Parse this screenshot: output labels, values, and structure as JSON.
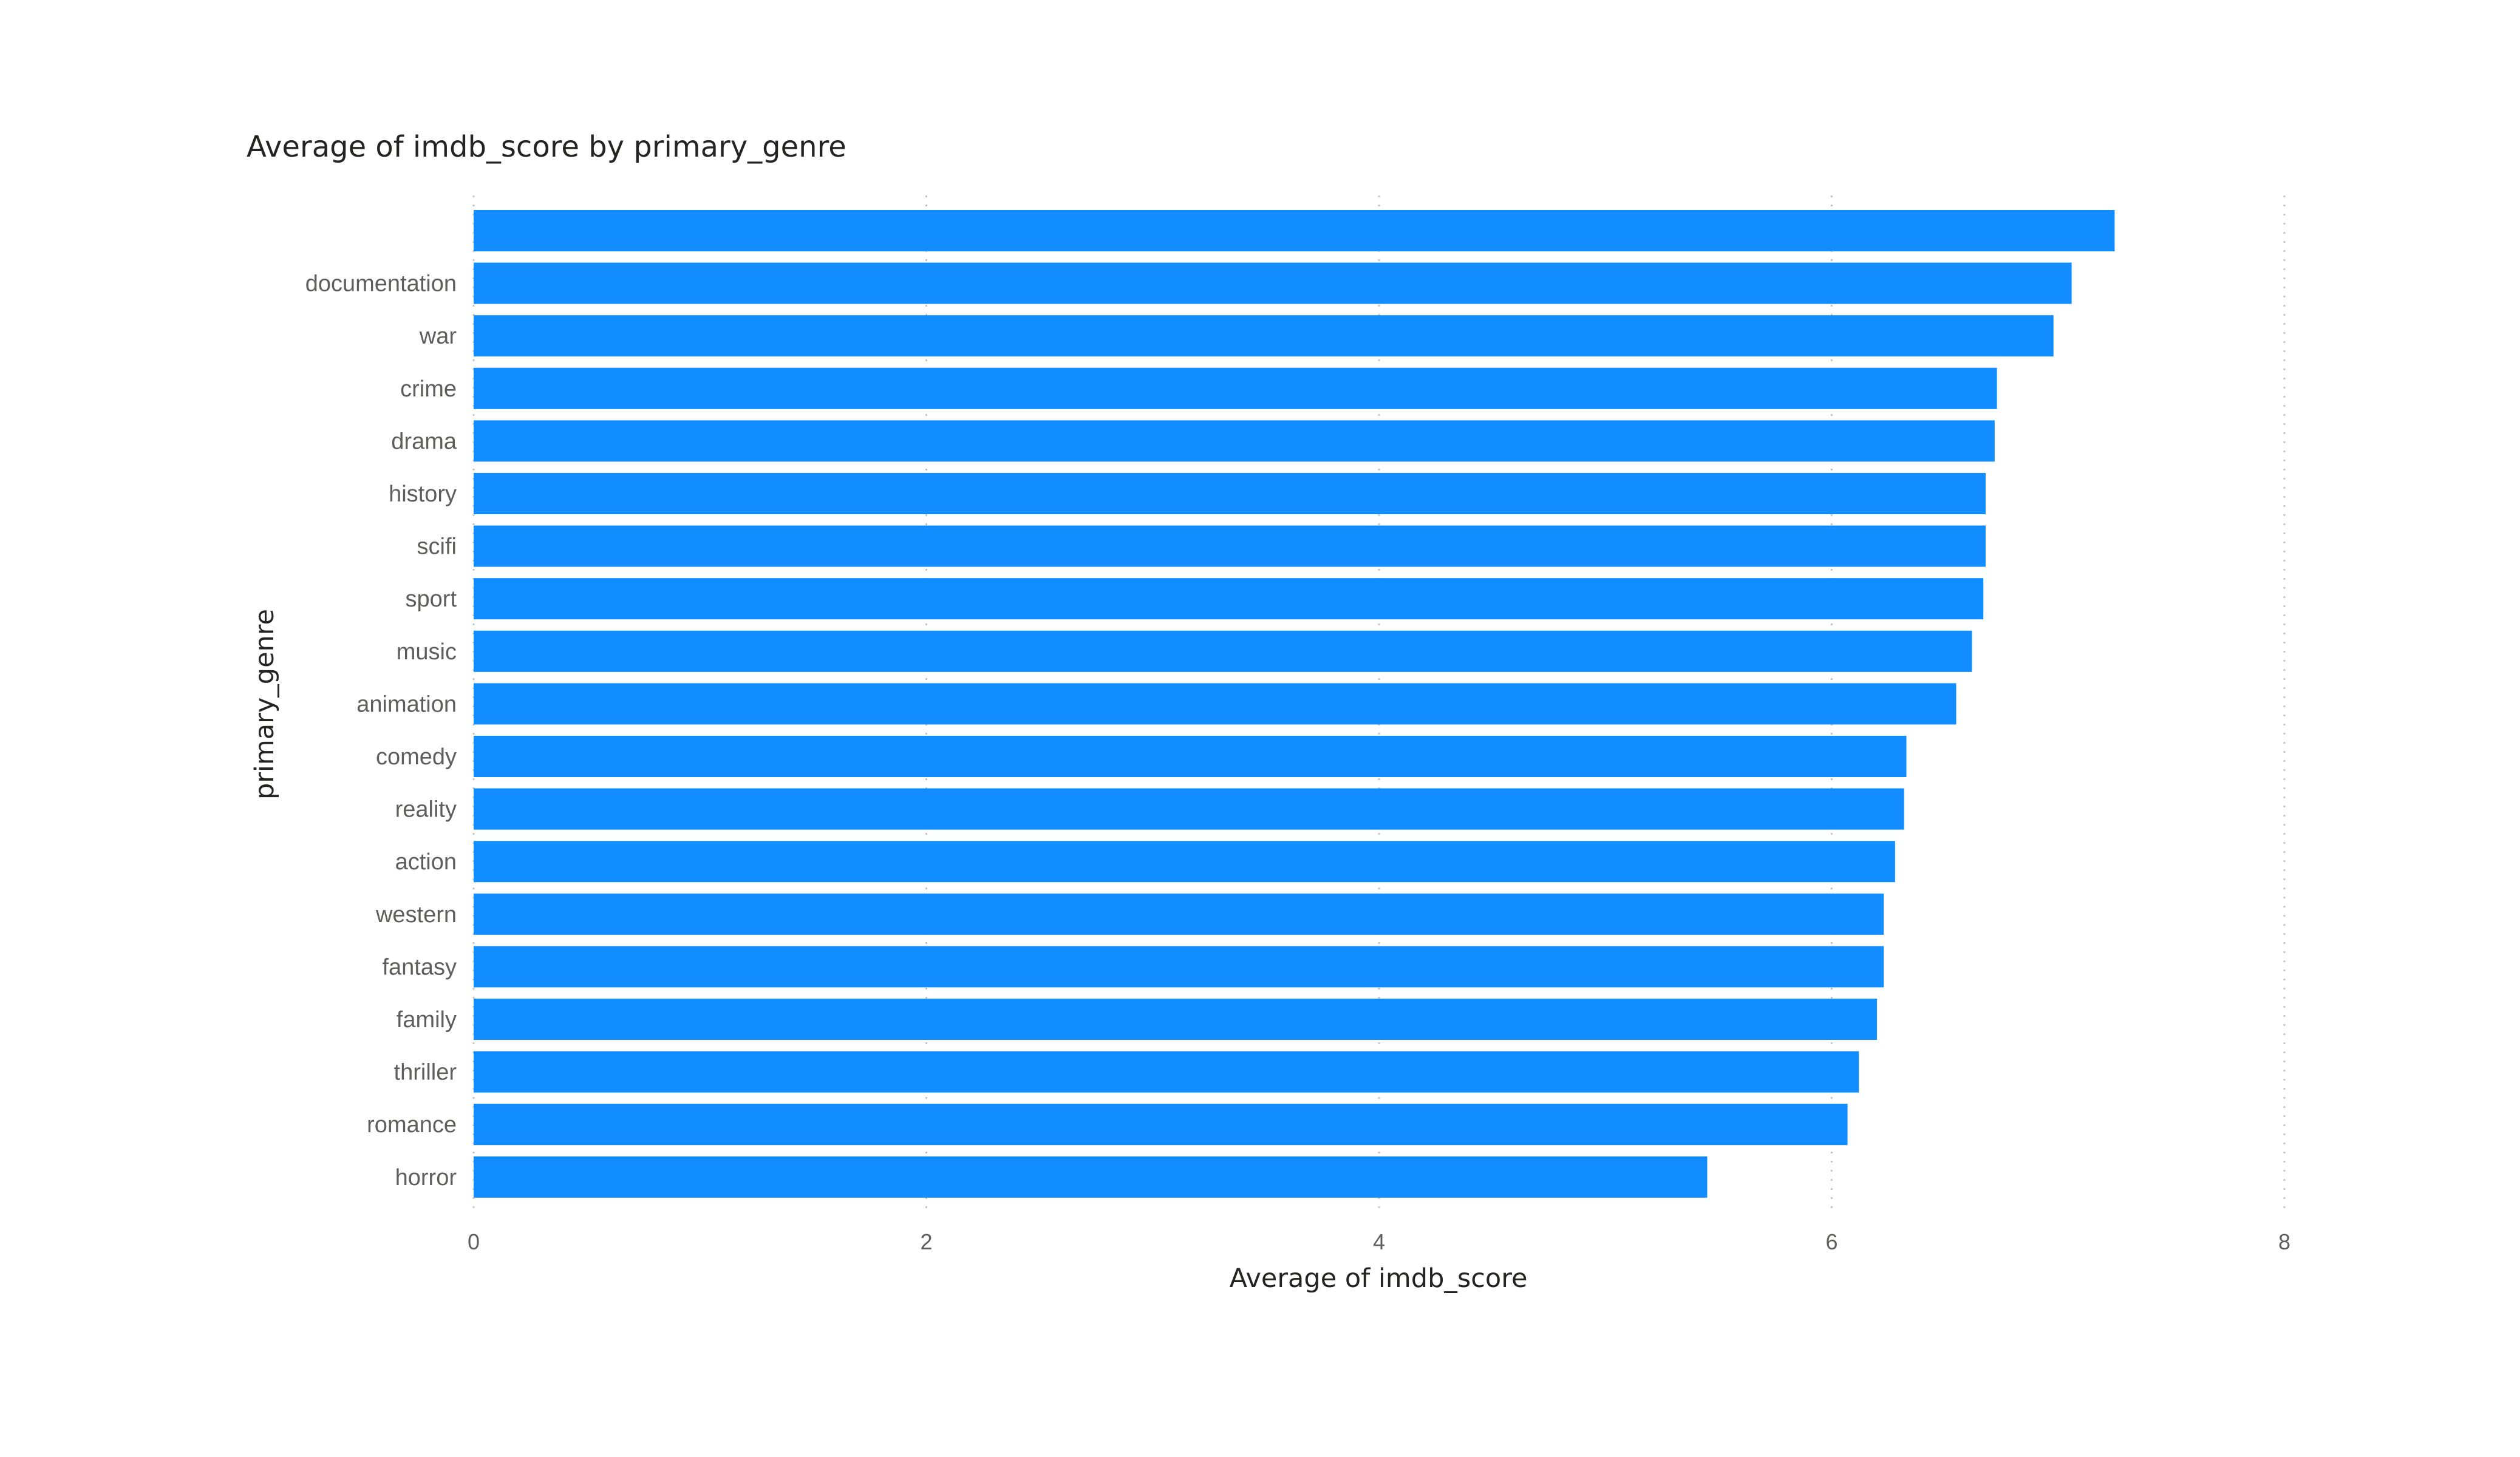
{
  "chart_data": {
    "type": "bar",
    "orientation": "horizontal",
    "title": "Average of imdb_score by primary_genre",
    "xlabel": "Average of imdb_score",
    "ylabel": "primary_genre",
    "categories": [
      "",
      "documentation",
      "war",
      "crime",
      "drama",
      "history",
      "scifi",
      "sport",
      "music",
      "animation",
      "comedy",
      "reality",
      "action",
      "western",
      "fantasy",
      "family",
      "thriller",
      "romance",
      "horror"
    ],
    "values": [
      7.25,
      7.06,
      6.98,
      6.73,
      6.72,
      6.68,
      6.68,
      6.67,
      6.62,
      6.55,
      6.33,
      6.32,
      6.28,
      6.23,
      6.23,
      6.2,
      6.12,
      6.07,
      5.45
    ],
    "xlim": [
      0,
      8
    ],
    "xticks": [
      "0",
      "2",
      "4",
      "6",
      "8"
    ],
    "grid": true,
    "color": "#118dff"
  }
}
